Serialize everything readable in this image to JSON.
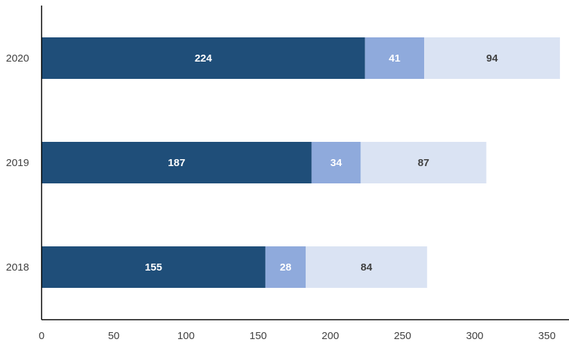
{
  "chart_data": {
    "type": "bar",
    "orientation": "horizontal",
    "stacked": true,
    "title": "",
    "xlabel": "",
    "ylabel": "",
    "categories": [
      "2020",
      "2019",
      "2018"
    ],
    "xlim": [
      0,
      360
    ],
    "xticks": [
      0,
      50,
      100,
      150,
      200,
      250,
      300,
      350
    ],
    "grid": false,
    "legend": "none",
    "series": [
      {
        "values": [
          224,
          187,
          155
        ],
        "color": "#1f4e79",
        "label_color": "#ffffff"
      },
      {
        "values": [
          41,
          34,
          28
        ],
        "color": "#8faadc",
        "label_color": "#ffffff"
      },
      {
        "values": [
          94,
          87,
          84
        ],
        "color": "#dae3f3",
        "label_color": "#404040"
      }
    ]
  }
}
